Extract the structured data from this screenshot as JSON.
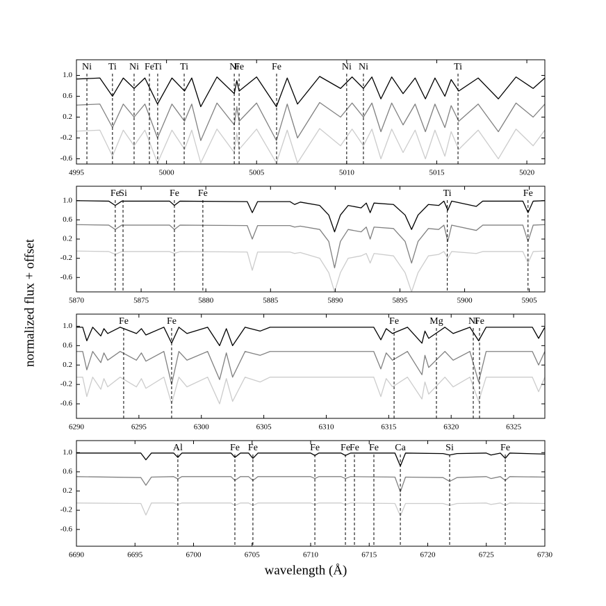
{
  "chart_data": [
    {
      "type": "line",
      "ylabel": "normalized flux + offset",
      "x": [
        4995,
        4996.3,
        4997.0,
        4997.6,
        4998.2,
        4998.8,
        4999.5,
        5000.3,
        5001.0,
        5001.4,
        5001.9,
        5002.8,
        5003.76,
        5003.9,
        5004.03,
        5005.0,
        5006.1,
        5006.7,
        5007.27,
        5008.5,
        5009.66,
        5010.3,
        5010.93,
        5011.4,
        5011.9,
        5012.5,
        5013.13,
        5013.8,
        5014.37,
        5014.9,
        5015.45,
        5015.8,
        5016.22,
        5017.3,
        5018.42,
        5019.4,
        5020.35,
        5021
      ],
      "series": [
        {
          "color": "#000000",
          "values": [
            0.93,
            0.95,
            0.6,
            0.95,
            0.75,
            0.95,
            0.45,
            0.95,
            0.7,
            0.95,
            0.4,
            0.97,
            0.65,
            0.9,
            0.7,
            0.97,
            0.4,
            0.95,
            0.45,
            0.98,
            0.75,
            0.97,
            0.75,
            0.97,
            0.55,
            0.97,
            0.65,
            0.95,
            0.55,
            0.95,
            0.6,
            0.92,
            0.7,
            0.95,
            0.55,
            0.97,
            0.75,
            0.95
          ]
        },
        {
          "color": "#808080",
          "values": [
            0.43,
            0.45,
            0.0,
            0.45,
            0.2,
            0.45,
            -0.2,
            0.45,
            0.12,
            0.45,
            -0.25,
            0.47,
            0.05,
            0.4,
            0.12,
            0.47,
            -0.25,
            0.45,
            -0.2,
            0.48,
            0.2,
            0.47,
            0.2,
            0.47,
            -0.08,
            0.47,
            0.05,
            0.45,
            -0.08,
            0.45,
            0.0,
            0.42,
            0.12,
            0.45,
            -0.08,
            0.47,
            0.2,
            0.45
          ]
        },
        {
          "color": "#cccccc",
          "values": [
            -0.07,
            -0.05,
            -0.55,
            -0.05,
            -0.35,
            -0.05,
            -0.68,
            -0.05,
            -0.42,
            -0.05,
            -0.68,
            -0.03,
            -0.48,
            -0.1,
            -0.42,
            -0.03,
            -0.68,
            -0.05,
            -0.68,
            -0.02,
            -0.35,
            -0.03,
            -0.35,
            -0.03,
            -0.6,
            -0.03,
            -0.48,
            -0.05,
            -0.6,
            -0.05,
            -0.55,
            -0.08,
            -0.42,
            -0.05,
            -0.6,
            -0.03,
            -0.35,
            -0.05
          ]
        }
      ],
      "xlim": [
        4995,
        5021
      ],
      "ylim": [
        -0.7,
        1.3
      ],
      "xticks": [
        4995,
        5000,
        5005,
        5010,
        5015,
        5020
      ],
      "yticks": [
        {
          "value": 1,
          "label": "1.0"
        },
        0.6,
        0.2,
        -0.2,
        -0.6
      ],
      "lines": [
        {
          "label": "Ni",
          "x": 4995.58
        },
        {
          "label": "Ti",
          "x": 4997.0
        },
        {
          "label": "Ni",
          "x": 4998.2
        },
        {
          "label": "Fe",
          "x": 4999.05
        },
        {
          "label": "Ti",
          "x": 4999.51
        },
        {
          "label": "Ti",
          "x": 5000.98
        },
        {
          "label": "Ni",
          "x": 5003.76
        },
        {
          "label": "Fe",
          "x": 5004.03
        },
        {
          "label": "Fe",
          "x": 5006.11
        },
        {
          "label": "Ni",
          "x": 5010.0
        },
        {
          "label": "Ni",
          "x": 5010.93
        },
        {
          "label": "Ti",
          "x": 5016.18
        }
      ]
    },
    {
      "type": "line",
      "x": [
        5870,
        5872.5,
        5873.0,
        5873.5,
        5877.2,
        5877.57,
        5878.0,
        5883.2,
        5883.59,
        5884.0,
        5886.5,
        5886.86,
        5887.3,
        5888.8,
        5889.5,
        5889.95,
        5890.4,
        5891.0,
        5892.0,
        5892.4,
        5892.7,
        5893.0,
        5894.5,
        5895.4,
        5895.9,
        5896.4,
        5897.2,
        5898.0,
        5898.4,
        5898.7,
        5899.0,
        5900.9,
        5901.4,
        5904.5,
        5904.9,
        5905.3,
        5906.2
      ],
      "series": [
        {
          "color": "#000000",
          "values": [
            1.0,
            0.99,
            0.9,
            0.99,
            0.99,
            0.9,
            0.99,
            0.98,
            0.75,
            0.98,
            0.98,
            0.92,
            0.97,
            0.9,
            0.7,
            0.35,
            0.7,
            0.9,
            0.85,
            0.95,
            0.75,
            0.95,
            0.92,
            0.7,
            0.4,
            0.7,
            0.92,
            0.9,
            0.99,
            0.8,
            0.99,
            0.88,
            0.99,
            0.99,
            0.75,
            0.99,
            1.0
          ]
        },
        {
          "color": "#808080",
          "values": [
            0.5,
            0.49,
            0.4,
            0.49,
            0.49,
            0.4,
            0.49,
            0.48,
            0.2,
            0.48,
            0.48,
            0.45,
            0.47,
            0.4,
            0.15,
            -0.4,
            0.15,
            0.4,
            0.35,
            0.45,
            0.2,
            0.45,
            0.42,
            0.15,
            -0.3,
            0.15,
            0.42,
            0.4,
            0.49,
            0.15,
            0.49,
            0.38,
            0.49,
            0.49,
            0.15,
            0.49,
            0.5
          ]
        },
        {
          "color": "#cccccc",
          "values": [
            -0.05,
            -0.06,
            -0.12,
            -0.06,
            -0.06,
            -0.1,
            -0.06,
            -0.07,
            -0.45,
            -0.07,
            -0.07,
            -0.1,
            -0.08,
            -0.2,
            -0.5,
            -0.9,
            -0.5,
            -0.2,
            -0.15,
            -0.1,
            -0.3,
            -0.1,
            -0.15,
            -0.5,
            -0.9,
            -0.5,
            -0.15,
            -0.12,
            -0.06,
            -0.2,
            -0.06,
            -0.1,
            -0.06,
            -0.06,
            -0.3,
            -0.06,
            -0.05
          ]
        }
      ],
      "xlim": [
        5870,
        5906.2
      ],
      "ylim": [
        -0.9,
        1.3
      ],
      "xticks": [
        5870,
        5875,
        5880,
        5885,
        5890,
        5895,
        5900,
        5905
      ],
      "yticks": [
        {
          "value": 1,
          "label": "1.0"
        },
        0.6,
        0.2,
        -0.2,
        -0.6
      ],
      "lines": [
        {
          "label": "Fe",
          "x": 5873.0
        },
        {
          "label": "Si",
          "x": 5873.6
        },
        {
          "label": "Fe",
          "x": 5877.57
        },
        {
          "label": "Fe",
          "x": 5879.77
        },
        {
          "label": "Ti",
          "x": 5898.66
        },
        {
          "label": "Fe",
          "x": 5904.9
        }
      ]
    },
    {
      "type": "line",
      "x": [
        6290,
        6290.5,
        6290.83,
        6291.3,
        6291.95,
        6292.2,
        6292.5,
        6293.5,
        6294.8,
        6295.2,
        6295.56,
        6297.0,
        6297.62,
        6298.2,
        6298.85,
        6300.5,
        6301.46,
        6302.0,
        6302.5,
        6303.5,
        6304.7,
        6305.5,
        6313.8,
        6314.37,
        6314.8,
        6315.3,
        6316.5,
        6317.66,
        6317.9,
        6318.2,
        6319.5,
        6320.16,
        6321.5,
        6322.2,
        6322.8,
        6326.5,
        6327.0,
        6327.5
      ],
      "series": [
        {
          "color": "#000000",
          "values": [
            0.98,
            0.98,
            0.7,
            0.98,
            0.8,
            0.95,
            0.85,
            0.98,
            0.85,
            0.95,
            0.82,
            0.98,
            0.65,
            0.98,
            0.85,
            0.98,
            0.6,
            0.95,
            0.6,
            0.98,
            0.9,
            0.98,
            0.98,
            0.72,
            0.95,
            0.85,
            0.98,
            0.65,
            0.9,
            0.75,
            0.98,
            0.85,
            0.98,
            0.7,
            0.98,
            0.98,
            0.75,
            0.98
          ]
        },
        {
          "color": "#808080",
          "values": [
            0.48,
            0.48,
            0.1,
            0.48,
            0.25,
            0.45,
            0.3,
            0.48,
            0.3,
            0.45,
            0.28,
            0.48,
            -0.2,
            0.48,
            0.3,
            0.48,
            -0.1,
            0.45,
            -0.05,
            0.48,
            0.4,
            0.48,
            0.48,
            0.12,
            0.45,
            0.3,
            0.48,
            0.0,
            0.4,
            0.15,
            0.48,
            0.3,
            0.48,
            -0.15,
            0.48,
            0.48,
            0.2,
            0.48
          ]
        },
        {
          "color": "#cccccc",
          "values": [
            -0.05,
            -0.05,
            -0.45,
            -0.05,
            -0.3,
            -0.08,
            -0.25,
            -0.05,
            -0.25,
            -0.08,
            -0.28,
            -0.05,
            -0.6,
            -0.05,
            -0.25,
            -0.05,
            -0.6,
            -0.08,
            -0.55,
            -0.05,
            -0.15,
            -0.05,
            -0.05,
            -0.45,
            -0.08,
            -0.25,
            -0.05,
            -0.5,
            -0.15,
            -0.4,
            -0.05,
            -0.25,
            -0.05,
            -0.55,
            -0.05,
            -0.05,
            -0.35,
            -0.05
          ]
        }
      ],
      "xlim": [
        6290,
        6327.5
      ],
      "ylim": [
        -0.9,
        1.25
      ],
      "xticks": [
        6290,
        6295,
        6300,
        6305,
        6310,
        6315,
        6320,
        6325
      ],
      "yticks": [
        {
          "value": 1,
          "label": "1.0"
        },
        0.6,
        0.2,
        -0.2,
        -0.6
      ],
      "lines": [
        {
          "label": "Fe",
          "x": 6293.78
        },
        {
          "label": "Fe",
          "x": 6297.62
        },
        {
          "label": "Fe",
          "x": 6315.43
        },
        {
          "label": "Mg",
          "x": 6318.82
        },
        {
          "label": "Ni",
          "x": 6321.77
        },
        {
          "label": "Fe",
          "x": 6322.27
        }
      ]
    },
    {
      "type": "line",
      "xlabel": "wavelength (Å)",
      "x": [
        6690,
        6695.5,
        6695.93,
        6696.4,
        6698.3,
        6698.66,
        6699.0,
        6703.2,
        6703.53,
        6704.0,
        6704.7,
        6705.07,
        6705.5,
        6710.0,
        6710.36,
        6710.7,
        6712.6,
        6712.97,
        6713.4,
        6717.2,
        6717.66,
        6718.1,
        6721.3,
        6721.87,
        6722.5,
        6725.0,
        6725.4,
        6726.2,
        6726.62,
        6727.0,
        6730
      ],
      "series": [
        {
          "color": "#000000",
          "values": [
            0.99,
            0.99,
            0.85,
            0.99,
            0.99,
            0.9,
            0.99,
            0.99,
            0.9,
            0.99,
            0.99,
            0.88,
            0.99,
            0.99,
            0.94,
            0.99,
            0.99,
            0.94,
            0.99,
            0.99,
            0.72,
            0.99,
            0.98,
            0.95,
            0.98,
            0.99,
            0.95,
            0.99,
            0.88,
            0.99,
            0.97
          ]
        },
        {
          "color": "#808080",
          "values": [
            0.5,
            0.48,
            0.32,
            0.49,
            0.5,
            0.45,
            0.5,
            0.5,
            0.42,
            0.5,
            0.5,
            0.42,
            0.5,
            0.5,
            0.46,
            0.5,
            0.5,
            0.46,
            0.5,
            0.49,
            0.18,
            0.49,
            0.48,
            0.4,
            0.48,
            0.5,
            0.46,
            0.5,
            0.42,
            0.5,
            0.49
          ]
        },
        {
          "color": "#cccccc",
          "values": [
            -0.05,
            -0.06,
            -0.3,
            -0.05,
            -0.05,
            -0.08,
            -0.05,
            -0.05,
            -0.1,
            -0.05,
            -0.05,
            -0.1,
            -0.05,
            -0.05,
            -0.08,
            -0.05,
            -0.05,
            -0.08,
            -0.05,
            -0.06,
            -0.32,
            -0.06,
            -0.06,
            -0.1,
            -0.06,
            -0.05,
            -0.08,
            -0.05,
            -0.1,
            -0.05,
            -0.06
          ]
        }
      ],
      "xlim": [
        6690,
        6730
      ],
      "ylim": [
        -0.95,
        1.25
      ],
      "xticks": [
        6690,
        6695,
        6700,
        6705,
        6710,
        6715,
        6720,
        6725,
        6730
      ],
      "yticks": [
        {
          "value": 1,
          "label": "1.0"
        },
        0.6,
        0.2,
        -0.2,
        -0.6
      ],
      "lines": [
        {
          "label": "Al",
          "x": 6698.66
        },
        {
          "label": "Fe",
          "x": 6703.53
        },
        {
          "label": "Fe",
          "x": 6705.07
        },
        {
          "label": "Fe",
          "x": 6710.36
        },
        {
          "label": "Fe",
          "x": 6712.97
        },
        {
          "label": "Fe",
          "x": 6713.74
        },
        {
          "label": "Fe",
          "x": 6715.4
        },
        {
          "label": "Ca",
          "x": 6717.66
        },
        {
          "label": "Si",
          "x": 6721.87
        },
        {
          "label": "Fe",
          "x": 6726.62
        }
      ]
    }
  ]
}
